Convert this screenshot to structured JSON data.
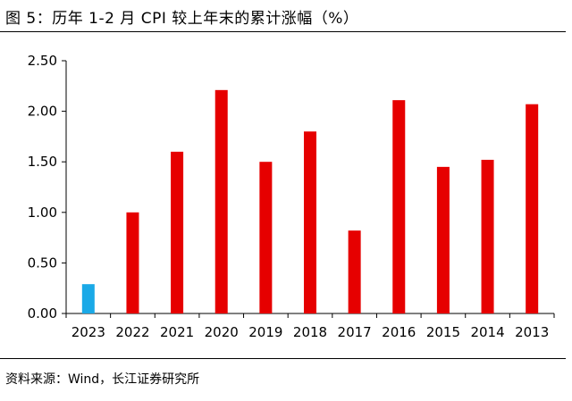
{
  "title": "图 5：历年 1-2 月 CPI 较上年末的累计涨幅（%）",
  "source": "资料来源：Wind，长江证券研究所",
  "colors": {
    "highlight": "#1aa9e7",
    "bar": "#e60000",
    "axis": "#000000"
  },
  "chart_data": {
    "type": "bar",
    "title": "图 5：历年 1-2 月 CPI 较上年末的累计涨幅（%）",
    "xlabel": "",
    "ylabel": "",
    "categories": [
      "2023",
      "2022",
      "2021",
      "2020",
      "2019",
      "2018",
      "2017",
      "2016",
      "2015",
      "2014",
      "2013"
    ],
    "values": [
      0.29,
      1.0,
      1.6,
      2.21,
      1.5,
      1.8,
      0.82,
      2.11,
      1.45,
      1.52,
      2.07
    ],
    "bar_colors": [
      "#1aa9e7",
      "#e60000",
      "#e60000",
      "#e60000",
      "#e60000",
      "#e60000",
      "#e60000",
      "#e60000",
      "#e60000",
      "#e60000",
      "#e60000"
    ],
    "ylim": [
      0,
      2.5
    ],
    "yticks": [
      "0.00",
      "0.50",
      "1.00",
      "1.50",
      "2.00",
      "2.50"
    ],
    "grid": false,
    "legend": "none"
  }
}
